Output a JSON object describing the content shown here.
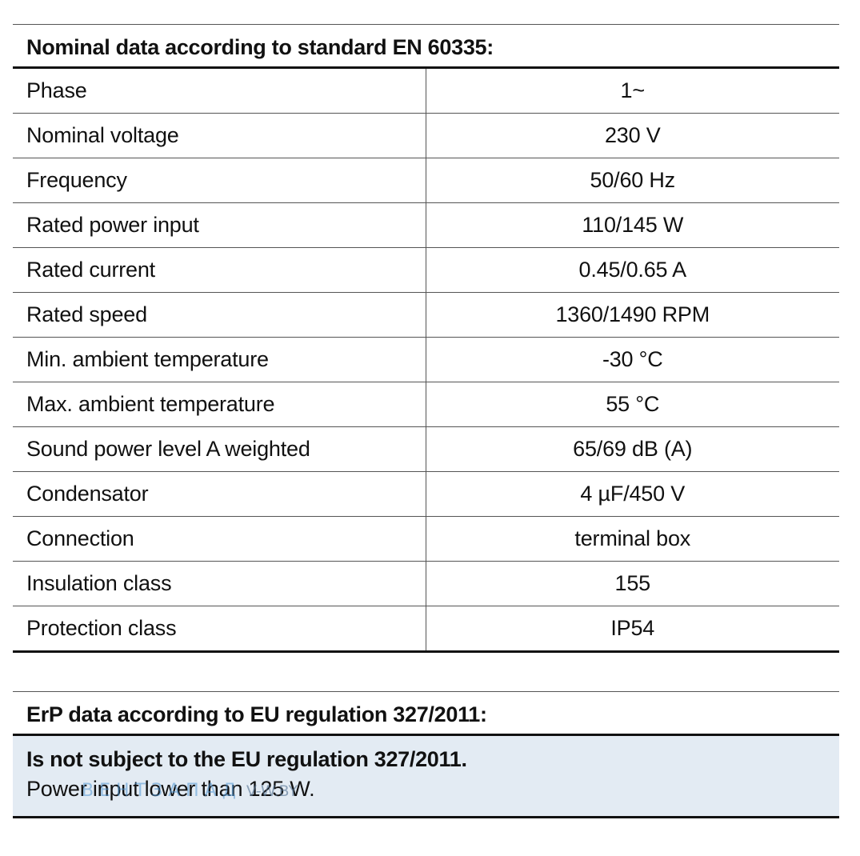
{
  "nominal": {
    "title": "Nominal data according to standard EN 60335:",
    "rows": [
      {
        "param": "Phase",
        "value": "1~"
      },
      {
        "param": "Nominal voltage",
        "value": "230 V"
      },
      {
        "param": "Frequency",
        "value": "50/60 Hz"
      },
      {
        "param": "Rated power input",
        "value": "110/145 W"
      },
      {
        "param": "Rated current",
        "value": "0.45/0.65 A"
      },
      {
        "param": "Rated speed",
        "value": "1360/1490 RPM"
      },
      {
        "param": "Min. ambient temperature",
        "value": "-30 °C"
      },
      {
        "param": "Max. ambient temperature",
        "value": "55 °C"
      },
      {
        "param": "Sound power level A weighted",
        "value": "65/69 dB (A)"
      },
      {
        "param": "Condensator",
        "value": "4 µF/450 V"
      },
      {
        "param": "Connection",
        "value": "terminal box"
      },
      {
        "param": "Insulation class",
        "value": "155"
      },
      {
        "param": "Protection class",
        "value": "IP54"
      }
    ]
  },
  "erp": {
    "title": "ErP data according to EU regulation 327/2011:",
    "headline": "Is not subject to the EU regulation 327/2011.",
    "note": "Power input lower than 125 W."
  },
  "watermark": {
    "brand": "ВЕНТЗАПАД",
    "site": "V-W.BY"
  },
  "colors": {
    "erp_background": "#e3ebf3",
    "rule": "#111111",
    "watermark_brand": "#5096d2"
  }
}
